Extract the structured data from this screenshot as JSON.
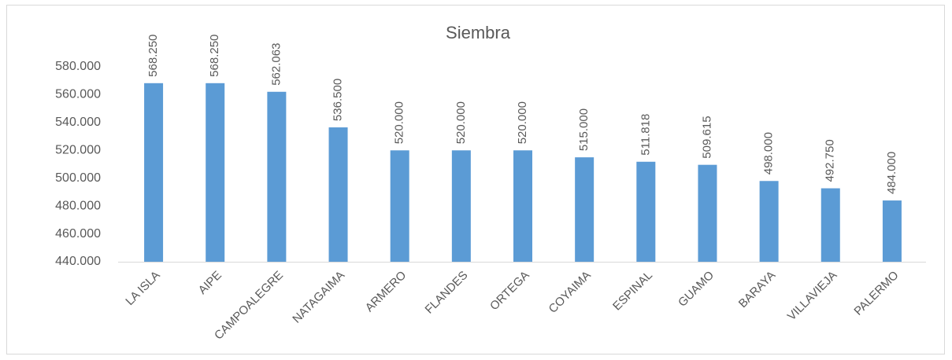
{
  "chart_data": {
    "type": "bar",
    "title": "Siembra",
    "categories": [
      "LA ISLA",
      "AIPE",
      "CAMPOALEGRE",
      "NATAGAIMA",
      "ARMERO",
      "FLANDES",
      "ORTEGA",
      "COYAIMA",
      "ESPINAL",
      "GUAMO",
      "BARAYA",
      "VILLAVIEJA",
      "PALERMO"
    ],
    "values": [
      568250,
      568250,
      562063,
      536500,
      520000,
      520000,
      520000,
      515000,
      511818,
      509615,
      498000,
      492750,
      484000
    ],
    "value_labels": [
      "568.250",
      "568.250",
      "562.063",
      "536.500",
      "520.000",
      "520.000",
      "520.000",
      "515.000",
      "511.818",
      "509.615",
      "498.000",
      "492.750",
      "484.000"
    ],
    "color": "#5b9bd5",
    "ylim": [
      440000,
      580000
    ],
    "yticks": [
      {
        "value": 440000,
        "label": "440.000"
      },
      {
        "value": 460000,
        "label": "460.000"
      },
      {
        "value": 480000,
        "label": "480.000"
      },
      {
        "value": 500000,
        "label": "500.000"
      },
      {
        "value": 520000,
        "label": "520.000"
      },
      {
        "value": 540000,
        "label": "540.000"
      },
      {
        "value": 560000,
        "label": "560.000"
      },
      {
        "value": 580000,
        "label": "580.000"
      }
    ],
    "grid": false
  }
}
